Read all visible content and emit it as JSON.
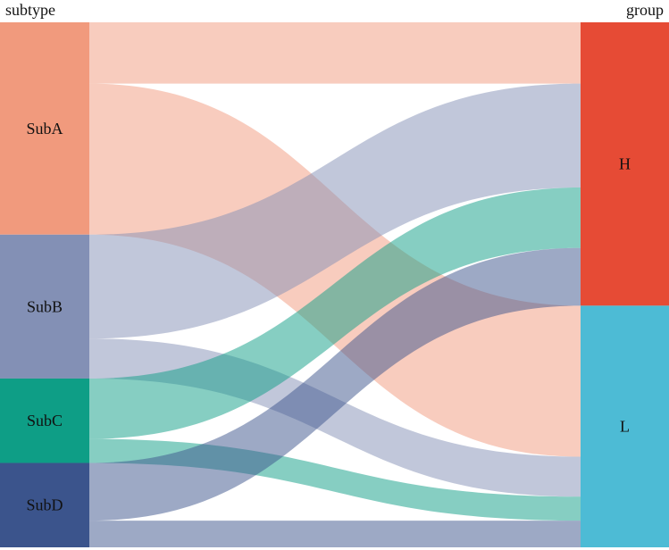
{
  "chart_data": {
    "type": "sankey",
    "left_axis_label": "subtype",
    "right_axis_label": "group",
    "source_nodes": [
      {
        "name": "SubA",
        "color": "#f19a7d"
      },
      {
        "name": "SubB",
        "color": "#8390b5"
      },
      {
        "name": "SubC",
        "color": "#0e9e86"
      },
      {
        "name": "SubD",
        "color": "#3b548c"
      }
    ],
    "target_nodes": [
      {
        "name": "H",
        "color": "#e64b35"
      },
      {
        "name": "L",
        "color": "#4dbbd5"
      }
    ],
    "links": [
      {
        "source": "SubA",
        "target": "H",
        "value": 69
      },
      {
        "source": "SubA",
        "target": "L",
        "value": 170
      },
      {
        "source": "SubB",
        "target": "H",
        "value": 117
      },
      {
        "source": "SubB",
        "target": "L",
        "value": 45
      },
      {
        "source": "SubC",
        "target": "H",
        "value": 68
      },
      {
        "source": "SubC",
        "target": "L",
        "value": 27
      },
      {
        "source": "SubD",
        "target": "H",
        "value": 65
      },
      {
        "source": "SubD",
        "target": "L",
        "value": 30
      }
    ]
  }
}
